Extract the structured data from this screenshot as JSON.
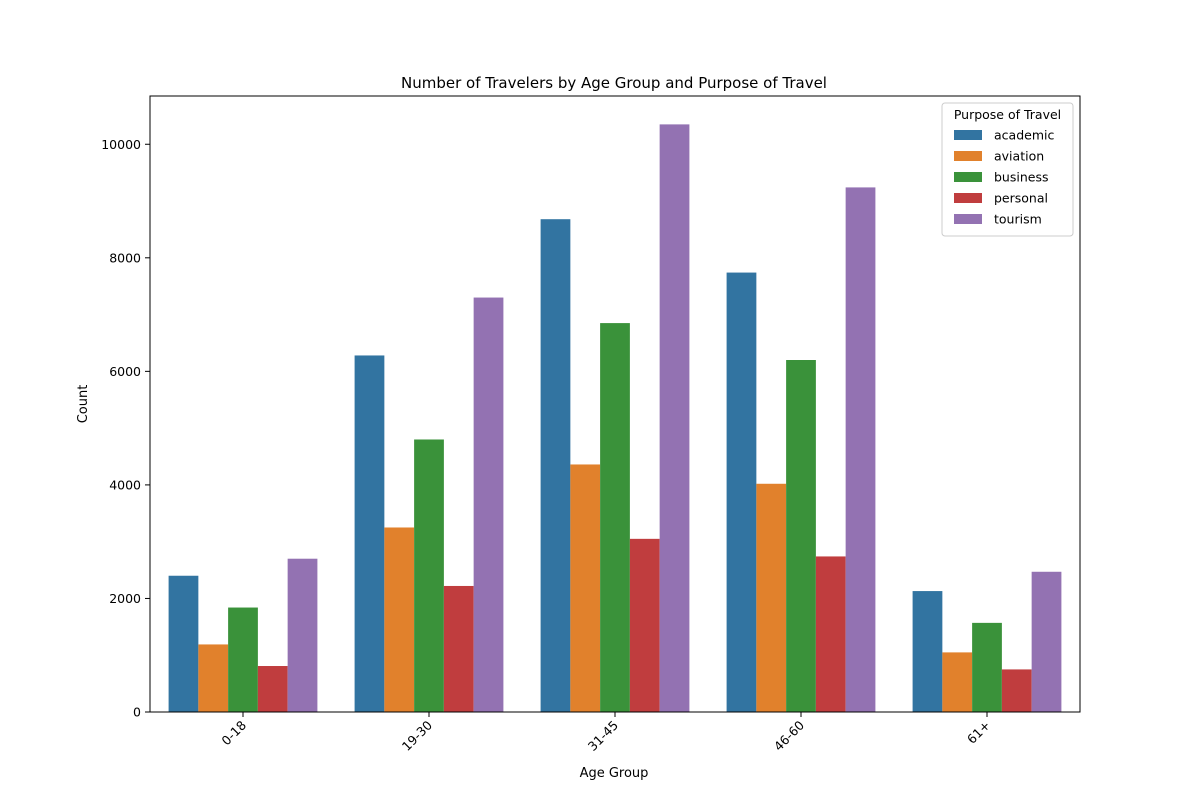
{
  "chart_data": {
    "type": "bar",
    "title": "Number of Travelers by Age Group and Purpose of Travel",
    "xlabel": "Age Group",
    "ylabel": "Count",
    "ylim": [
      0,
      10850
    ],
    "yticks": [
      0,
      2000,
      4000,
      6000,
      8000,
      10000
    ],
    "categories": [
      "0-18",
      "19-30",
      "31-45",
      "46-60",
      "61+"
    ],
    "legend": {
      "title": "Purpose of Travel",
      "placement": "top-right"
    },
    "grid": false,
    "series": [
      {
        "name": "academic",
        "color": "#3274a1",
        "values": [
          2400,
          6280,
          8680,
          7740,
          2130
        ]
      },
      {
        "name": "aviation",
        "color": "#e1812c",
        "values": [
          1190,
          3250,
          4360,
          4020,
          1050
        ]
      },
      {
        "name": "business",
        "color": "#3a923a",
        "values": [
          1840,
          4800,
          6850,
          6200,
          1570
        ]
      },
      {
        "name": "personal",
        "color": "#c03d3e",
        "values": [
          810,
          2220,
          3050,
          2740,
          750
        ]
      },
      {
        "name": "tourism",
        "color": "#9372b2",
        "values": [
          2700,
          7300,
          10350,
          9240,
          2470
        ]
      }
    ]
  }
}
